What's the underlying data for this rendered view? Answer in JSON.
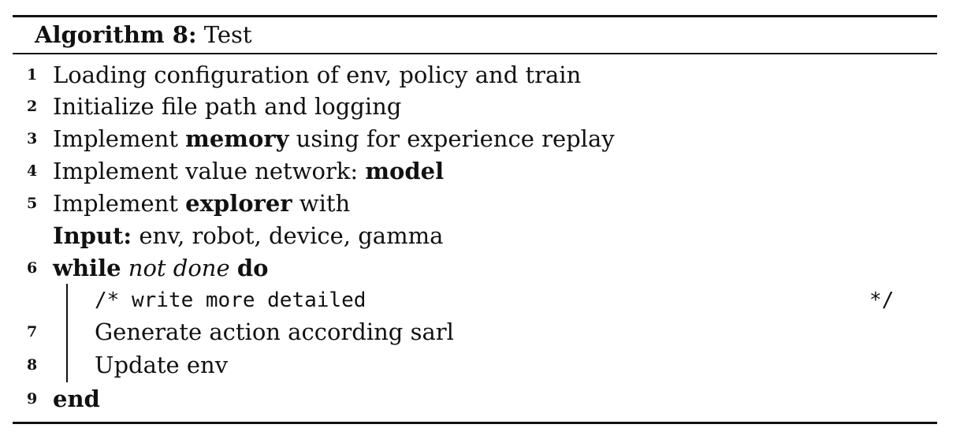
{
  "algorithm": {
    "label": "Algorithm 8:",
    "name": "Test"
  },
  "lines": [
    {
      "num": "1",
      "text": "Loading configuration of env, policy and train"
    },
    {
      "num": "2",
      "text": "Initialize file path and logging"
    },
    {
      "num": "3",
      "pre": "Implement ",
      "kw": "memory",
      "post": " using for experience replay"
    },
    {
      "num": "4",
      "pre": "Implement value network: ",
      "kw": "model"
    },
    {
      "num": "5",
      "pre": "Implement ",
      "kw": "explorer",
      "post": " with"
    },
    {
      "input_kw": "Input:",
      "input_text": " env, robot, device, gamma"
    },
    {
      "num": "6",
      "kw": "while",
      "cond": "not done",
      "kw2": "do"
    },
    {
      "comment_open": "/* write more detailed",
      "comment_close": "*/"
    },
    {
      "num": "7",
      "text": "Generate action according sarl"
    },
    {
      "num": "8",
      "text": "Update env"
    },
    {
      "num": "9",
      "kw": "end"
    }
  ]
}
